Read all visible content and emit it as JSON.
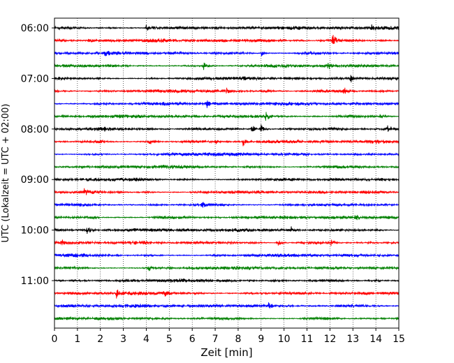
{
  "chart_data": {
    "type": "line",
    "title": "",
    "xlabel": "Zeit  [min]",
    "ylabel": "UTC (Lokalzeit = UTC + 02:00)",
    "xlim": [
      0,
      15
    ],
    "x_ticks": [
      "0",
      "1",
      "2",
      "3",
      "4",
      "5",
      "6",
      "7",
      "8",
      "9",
      "10",
      "11",
      "12",
      "13",
      "14",
      "15"
    ],
    "y_ticks": [
      "06:00",
      "07:00",
      "08:00",
      "09:00",
      "10:00",
      "11:00"
    ],
    "vertical_grid": true,
    "grid_style": "dotted",
    "trace_minutes": 15,
    "trace_start": "06:00",
    "trace_count": 24,
    "colors": [
      "#000000",
      "#ff0000",
      "#0000ff",
      "#008000"
    ],
    "events": [
      {
        "trace": 0,
        "x": 4.0,
        "a": 5
      },
      {
        "trace": 0,
        "x": 7.0,
        "a": 5
      },
      {
        "trace": 0,
        "x": 13.8,
        "a": 7
      },
      {
        "trace": 1,
        "x": 12.1,
        "a": 9
      },
      {
        "trace": 1,
        "x": 1.5,
        "a": 4
      },
      {
        "trace": 2,
        "x": 2.2,
        "a": 4
      },
      {
        "trace": 2,
        "x": 9.0,
        "a": 4
      },
      {
        "trace": 3,
        "x": 6.5,
        "a": 6
      },
      {
        "trace": 3,
        "x": 11.9,
        "a": 7
      },
      {
        "trace": 4,
        "x": 12.9,
        "a": 5
      },
      {
        "trace": 5,
        "x": 12.6,
        "a": 5
      },
      {
        "trace": 5,
        "x": 7.5,
        "a": 4
      },
      {
        "trace": 6,
        "x": 6.6,
        "a": 7
      },
      {
        "trace": 7,
        "x": 9.2,
        "a": 5
      },
      {
        "trace": 7,
        "x": 14.2,
        "a": 5
      },
      {
        "trace": 8,
        "x": 2.1,
        "a": 5
      },
      {
        "trace": 8,
        "x": 8.6,
        "a": 6
      },
      {
        "trace": 8,
        "x": 9.0,
        "a": 7
      },
      {
        "trace": 8,
        "x": 14.5,
        "a": 6
      },
      {
        "trace": 9,
        "x": 4.1,
        "a": 5
      },
      {
        "trace": 9,
        "x": 7.0,
        "a": 4
      },
      {
        "trace": 9,
        "x": 8.2,
        "a": 7
      },
      {
        "trace": 13,
        "x": 1.3,
        "a": 5
      },
      {
        "trace": 14,
        "x": 6.4,
        "a": 5
      },
      {
        "trace": 15,
        "x": 1.6,
        "a": 4
      },
      {
        "trace": 15,
        "x": 13.1,
        "a": 4
      },
      {
        "trace": 16,
        "x": 1.4,
        "a": 5
      },
      {
        "trace": 16,
        "x": 10.3,
        "a": 4
      },
      {
        "trace": 17,
        "x": 9.7,
        "a": 6
      },
      {
        "trace": 17,
        "x": 12.0,
        "a": 7
      },
      {
        "trace": 17,
        "x": 0.3,
        "a": 4
      },
      {
        "trace": 19,
        "x": 4.1,
        "a": 4
      },
      {
        "trace": 21,
        "x": 2.7,
        "a": 6
      },
      {
        "trace": 21,
        "x": 4.8,
        "a": 4
      },
      {
        "trace": 22,
        "x": 9.3,
        "a": 4
      }
    ]
  }
}
